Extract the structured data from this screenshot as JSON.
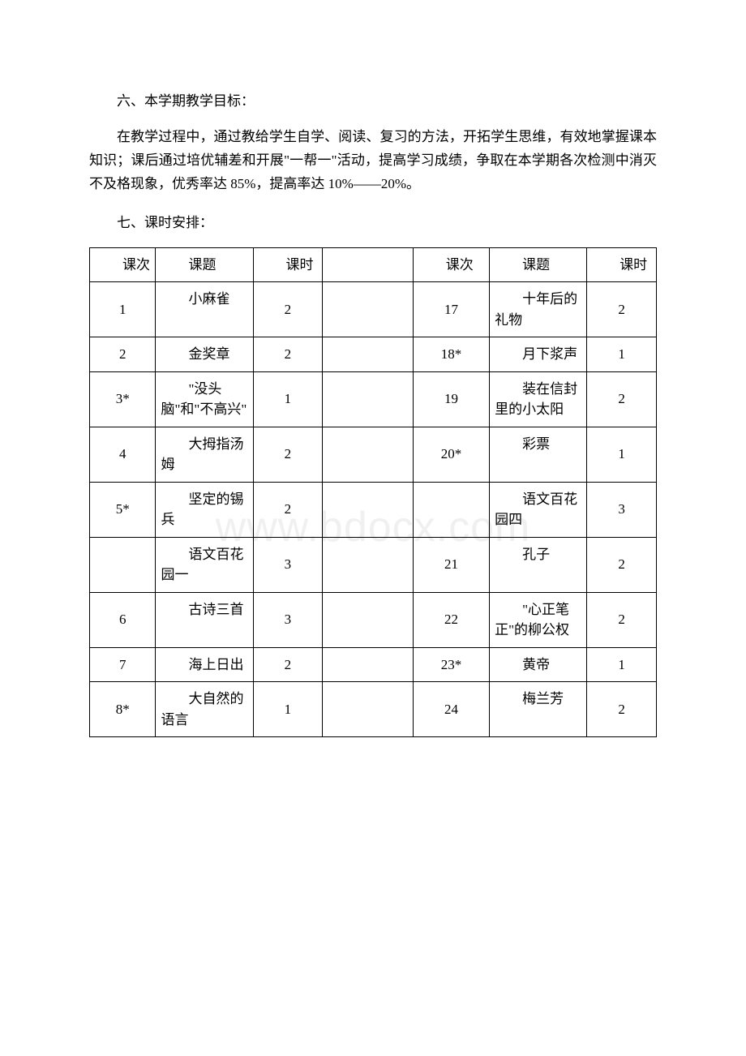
{
  "watermark_text": "www.bdocx.com",
  "heading_1": "六、本学期教学目标：",
  "paragraph_1": "在教学过程中，通过教给学生自学、阅读、复习的方法，开拓学生思维，有效地掌握课本知识；课后通过培优辅差和开展\"一帮一\"活动，提高学习成绩，争取在本学期各次检测中消灭不及格现象，优秀率达 85%，提高率达 10%——20%。",
  "heading_2": "七、课时安排：",
  "headers": {
    "col1": "课次",
    "col2": "课题",
    "col3": "课时",
    "col4": "课次",
    "col5": "课题",
    "col6": "课时"
  },
  "rows": [
    {
      "l_num": "1",
      "l_title": "小麻雀",
      "l_hours": "2",
      "r_num": "17",
      "r_title": "十年后的礼物",
      "r_hours": "2"
    },
    {
      "l_num": "2",
      "l_title": "金奖章",
      "l_hours": "2",
      "r_num": "18*",
      "r_title": "月下浆声",
      "r_hours": "1"
    },
    {
      "l_num": "3*",
      "l_title": "\"没头脑\"和\"不高兴\"",
      "l_hours": "1",
      "r_num": "19",
      "r_title": "装在信封里的小太阳",
      "r_hours": "2"
    },
    {
      "l_num": "4",
      "l_title": "大拇指汤姆",
      "l_hours": "2",
      "r_num": "20*",
      "r_title": "彩票",
      "r_hours": "1"
    },
    {
      "l_num": "5*",
      "l_title": "坚定的锡兵",
      "l_hours": "2",
      "r_num": "",
      "r_title": "语文百花园四",
      "r_hours": "3"
    },
    {
      "l_num": "",
      "l_title": "语文百花园一",
      "l_hours": "3",
      "r_num": "21",
      "r_title": "孔子",
      "r_hours": "2"
    },
    {
      "l_num": "6",
      "l_title": "古诗三首",
      "l_hours": "3",
      "r_num": "22",
      "r_title": "\"心正笔正\"的柳公权",
      "r_hours": "2"
    },
    {
      "l_num": "7",
      "l_title": "海上日出",
      "l_hours": "2",
      "r_num": "23*",
      "r_title": "黄帝",
      "r_hours": "1"
    },
    {
      "l_num": "8*",
      "l_title": "大自然的语言",
      "l_hours": "1",
      "r_num": "24",
      "r_title": "梅兰芳",
      "r_hours": "2"
    }
  ]
}
